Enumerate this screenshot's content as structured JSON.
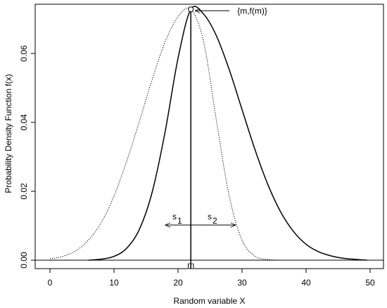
{
  "chart_data": {
    "type": "line",
    "title": "",
    "xlabel": "Random variable X",
    "ylabel": "Probability Density Function f(x)",
    "xlim": [
      0,
      50
    ],
    "ylim": [
      0,
      0.07
    ],
    "x_ticks": [
      "0",
      "10",
      "20",
      "30",
      "40",
      "50"
    ],
    "y_ticks": [
      "0.00",
      "0.02",
      "0.04",
      "0.06"
    ],
    "grid": false,
    "legend": "none",
    "series": [
      {
        "style": "solid",
        "x": [
          6,
          8,
          10,
          12,
          14,
          16,
          18,
          20,
          22,
          24,
          26,
          28,
          30,
          32,
          34,
          36,
          38,
          40,
          42,
          44,
          46,
          48,
          49.5
        ],
        "y": [
          0.0,
          0.0003,
          0.0011,
          0.0035,
          0.0091,
          0.02,
          0.0374,
          0.0586,
          0.0728,
          0.0714,
          0.0651,
          0.0553,
          0.0437,
          0.0322,
          0.0221,
          0.0141,
          0.0084,
          0.0046,
          0.0024,
          0.0012,
          0.0005,
          0.0002,
          0.0
        ]
      },
      {
        "style": "dotted",
        "x": [
          0,
          2,
          4,
          6,
          8,
          10,
          12,
          14,
          16,
          18,
          20,
          22,
          24,
          26,
          28,
          30,
          32,
          34,
          36
        ],
        "y": [
          0.0004,
          0.0011,
          0.0027,
          0.0058,
          0.0109,
          0.0186,
          0.0288,
          0.0405,
          0.0526,
          0.0634,
          0.0707,
          0.0728,
          0.0634,
          0.0405,
          0.0186,
          0.0058,
          0.0012,
          0.0002,
          0.0
        ]
      }
    ],
    "mode_x": 22,
    "mode_y": 0.0728,
    "annotations": {
      "peak_label": "{m,f(m)}",
      "mode_label": "m",
      "s1_label": "s",
      "s1_sub": "1",
      "s2_label": "s",
      "s2_sub": "2",
      "arrow_y": 0.0102,
      "s1_x_range": [
        18,
        22
      ],
      "s2_x_range": [
        22,
        29
      ]
    }
  }
}
